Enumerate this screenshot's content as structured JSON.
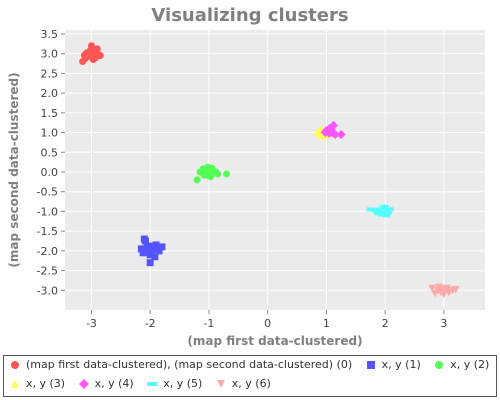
{
  "chart_data": {
    "type": "scatter",
    "title": "Visualizing clusters",
    "xlabel": "(map first data-clustered)",
    "ylabel": "(map second data-clustered)",
    "xlim": [
      -3.45,
      3.7
    ],
    "ylim": [
      -3.5,
      3.6
    ],
    "x_ticks": [
      "-3",
      "-2",
      "-1",
      "0",
      "1",
      "2",
      "3"
    ],
    "y_ticks": [
      "3.5",
      "3.0",
      "2.5",
      "2.0",
      "1.5",
      "1.0",
      "0.5",
      "0.0",
      "-0.5",
      "-1.0",
      "-1.5",
      "-2.0",
      "-2.5",
      "-3.0"
    ],
    "grid": true,
    "legend_position": "bottom",
    "series": [
      {
        "name": "(map first data-clustered), (map second data-clustered) (0)",
        "shape": "circle",
        "color": "#ff5555",
        "points": [
          [
            -3.05,
            2.95
          ],
          [
            -2.98,
            3.0
          ],
          [
            -2.92,
            3.05
          ],
          [
            -3.1,
            2.88
          ],
          [
            -2.95,
            3.1
          ],
          [
            -3.0,
            2.92
          ],
          [
            -2.88,
            2.98
          ],
          [
            -3.08,
            3.02
          ],
          [
            -2.93,
            2.9
          ],
          [
            -3.02,
            3.08
          ],
          [
            -2.97,
            2.85
          ],
          [
            -3.12,
            2.96
          ],
          [
            -2.9,
            3.12
          ],
          [
            -3.0,
            3.2
          ],
          [
            -2.85,
            2.95
          ],
          [
            -3.15,
            2.8
          ],
          [
            -2.96,
            3.0
          ],
          [
            -3.04,
            2.98
          ],
          [
            -2.99,
            3.05
          ],
          [
            -2.94,
            2.93
          ]
        ]
      },
      {
        "name": "x, y (1)",
        "shape": "square",
        "color": "#5555ff",
        "points": [
          [
            -2.05,
            -1.9
          ],
          [
            -1.98,
            -2.0
          ],
          [
            -1.9,
            -1.85
          ],
          [
            -2.15,
            -1.95
          ],
          [
            -2.0,
            -2.1
          ],
          [
            -1.85,
            -2.0
          ],
          [
            -2.08,
            -1.75
          ],
          [
            -1.95,
            -1.95
          ],
          [
            -2.12,
            -2.05
          ],
          [
            -1.92,
            -2.15
          ],
          [
            -2.0,
            -2.3
          ],
          [
            -1.8,
            -1.9
          ],
          [
            -2.1,
            -1.7
          ],
          [
            -1.97,
            -1.88
          ],
          [
            -2.03,
            -2.02
          ]
        ]
      },
      {
        "name": "x, y (2)",
        "shape": "circle",
        "color": "#55ff55",
        "points": [
          [
            -1.05,
            -0.05
          ],
          [
            -0.98,
            0.05
          ],
          [
            -0.92,
            -0.02
          ],
          [
            -1.1,
            0.08
          ],
          [
            -0.95,
            0.1
          ],
          [
            -1.0,
            -0.1
          ],
          [
            -0.88,
            0.0
          ],
          [
            -1.08,
            -0.08
          ],
          [
            -0.93,
            0.02
          ],
          [
            -1.02,
            0.12
          ],
          [
            -0.85,
            -0.05
          ],
          [
            -1.15,
            0.0
          ],
          [
            -0.7,
            -0.05
          ],
          [
            -1.2,
            -0.2
          ],
          [
            -0.97,
            -0.12
          ]
        ]
      },
      {
        "name": "x, y (3)",
        "shape": "triangle",
        "color": "#ffff55",
        "points": [
          [
            0.85,
            1.02
          ],
          [
            0.9,
            0.95
          ],
          [
            0.95,
            1.05
          ],
          [
            1.0,
            0.98
          ],
          [
            0.88,
            1.0
          ],
          [
            0.93,
            0.92
          ],
          [
            0.98,
            1.02
          ],
          [
            1.02,
            0.95
          ],
          [
            0.9,
            1.08
          ],
          [
            0.95,
            0.98
          ]
        ]
      },
      {
        "name": "x, y (4)",
        "shape": "diamond",
        "color": "#ff55ff",
        "points": [
          [
            1.0,
            1.05
          ],
          [
            1.05,
            1.1
          ],
          [
            1.1,
            1.0
          ],
          [
            1.12,
            1.18
          ],
          [
            1.03,
            1.02
          ],
          [
            1.08,
            1.08
          ],
          [
            0.98,
            1.0
          ],
          [
            1.15,
            0.95
          ],
          [
            1.25,
            0.95
          ],
          [
            1.05,
            0.98
          ]
        ]
      },
      {
        "name": "x, y (5)",
        "shape": "rect",
        "color": "#55ffff",
        "points": [
          [
            1.9,
            -0.95
          ],
          [
            1.95,
            -1.0
          ],
          [
            2.0,
            -0.9
          ],
          [
            2.05,
            -1.02
          ],
          [
            1.88,
            -1.05
          ],
          [
            1.98,
            -0.88
          ],
          [
            2.08,
            -0.95
          ],
          [
            1.85,
            -0.98
          ],
          [
            1.95,
            -1.08
          ],
          [
            2.02,
            -1.1
          ],
          [
            1.75,
            -0.95
          ],
          [
            2.0,
            -0.98
          ]
        ]
      },
      {
        "name": "x, y (6)",
        "shape": "triangle-down",
        "color": "#ffaaaa",
        "points": [
          [
            2.8,
            -2.95
          ],
          [
            2.9,
            -3.0
          ],
          [
            3.0,
            -2.98
          ],
          [
            3.1,
            -3.02
          ],
          [
            3.05,
            -2.95
          ],
          [
            2.95,
            -3.05
          ],
          [
            3.15,
            -3.0
          ],
          [
            2.85,
            -3.08
          ],
          [
            3.0,
            -3.1
          ],
          [
            3.2,
            -2.98
          ],
          [
            2.92,
            -2.92
          ],
          [
            3.08,
            -3.05
          ]
        ]
      }
    ]
  }
}
